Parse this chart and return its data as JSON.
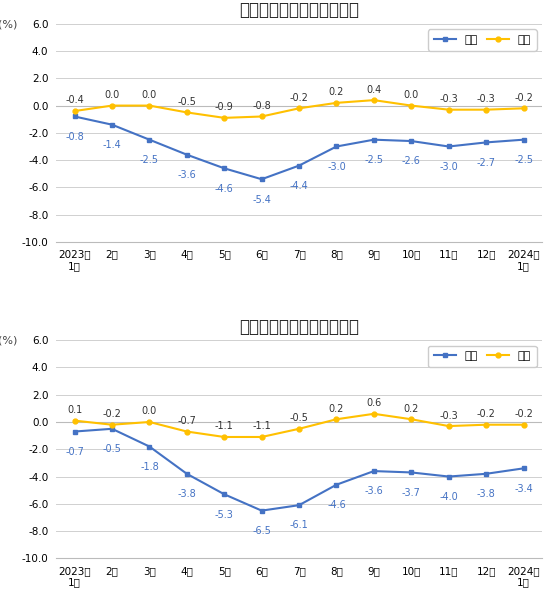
{
  "chart1": {
    "title": "工业生产者出厂价格涨跌幅",
    "yoy": [
      -0.8,
      -1.4,
      -2.5,
      -3.6,
      -4.6,
      -5.4,
      -4.4,
      -3.0,
      -2.5,
      -2.6,
      -3.0,
      -2.7,
      -2.5
    ],
    "mom": [
      -0.4,
      0.0,
      0.0,
      -0.5,
      -0.9,
      -0.8,
      -0.2,
      0.2,
      0.4,
      0.0,
      -0.3,
      -0.3,
      -0.2
    ]
  },
  "chart2": {
    "title": "工业生产者购进价格涨跌幅",
    "yoy": [
      -0.7,
      -0.5,
      -1.8,
      -3.8,
      -5.3,
      -6.5,
      -6.1,
      -4.6,
      -3.6,
      -3.7,
      -4.0,
      -3.8,
      -3.4
    ],
    "mom": [
      0.1,
      -0.2,
      0.0,
      -0.7,
      -1.1,
      -1.1,
      -0.5,
      0.2,
      0.6,
      0.2,
      -0.3,
      -0.2,
      -0.2
    ]
  },
  "x_labels": [
    "2023年\n1月",
    "2月",
    "3月",
    "4月",
    "5月",
    "6月",
    "7月",
    "8月",
    "9月",
    "10月",
    "11月",
    "12月",
    "2024年\n1月"
  ],
  "ylim": [
    -10.0,
    6.0
  ],
  "yticks": [
    -10.0,
    -8.0,
    -6.0,
    -4.0,
    -2.0,
    0.0,
    2.0,
    4.0,
    6.0
  ],
  "ylabel": "(%)",
  "yoy_color": "#4472c4",
  "mom_color": "#ffc000",
  "yoy_label": "同比",
  "mom_label": "环比",
  "background_color": "#ffffff",
  "plot_bg_color": "#ffffff",
  "grid_color": "#d0d0d0",
  "title_fontsize": 12,
  "label_fontsize": 8,
  "tick_fontsize": 7.5,
  "legend_fontsize": 8,
  "annotation_fontsize": 7
}
